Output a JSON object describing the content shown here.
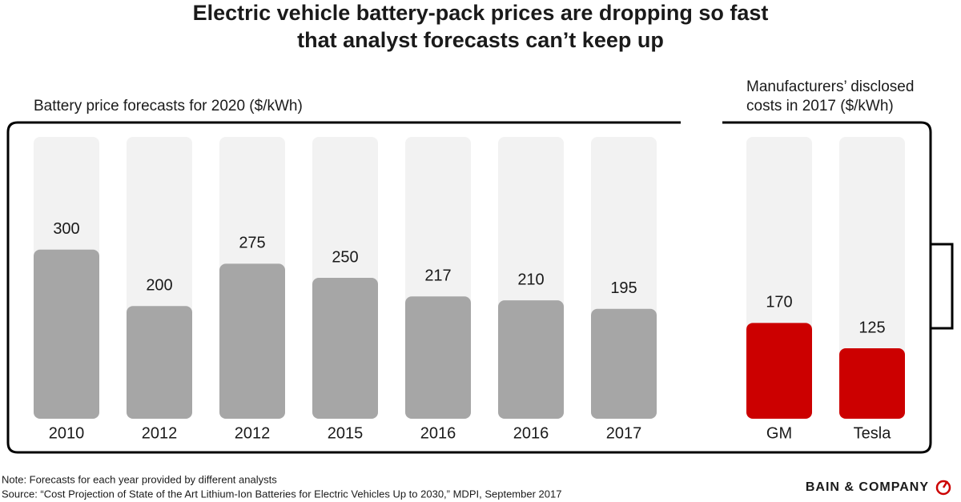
{
  "title": [
    "Electric vehicle battery-pack prices are dropping so fast",
    "that analyst forecasts can’t keep up"
  ],
  "chart_data": [
    {
      "type": "bar",
      "title": [
        "Battery price forecasts for 2020 ($/kWh)"
      ],
      "categories": [
        "2010",
        "2012",
        "2012",
        "2015",
        "2016",
        "2016",
        "2017"
      ],
      "values": [
        300,
        200,
        275,
        250,
        217,
        210,
        195
      ],
      "color": "#a6a6a6",
      "ylim": [
        0,
        500
      ]
    },
    {
      "type": "bar",
      "title": [
        "Manufacturers’ disclosed",
        "costs in 2017 ($/kWh)"
      ],
      "categories": [
        "GM",
        "Tesla"
      ],
      "values": [
        170,
        125
      ],
      "color": "#cc0000",
      "ylim": [
        0,
        500
      ]
    }
  ],
  "note": "Note: Forecasts for each year provided by different analysts",
  "source": "Source: “Cost Projection of State of the Art Lithium-Ion Batteries for Electric Vehicles Up to 2030,” MDPI, September 2017",
  "brand": "BAIN & COMPANY"
}
